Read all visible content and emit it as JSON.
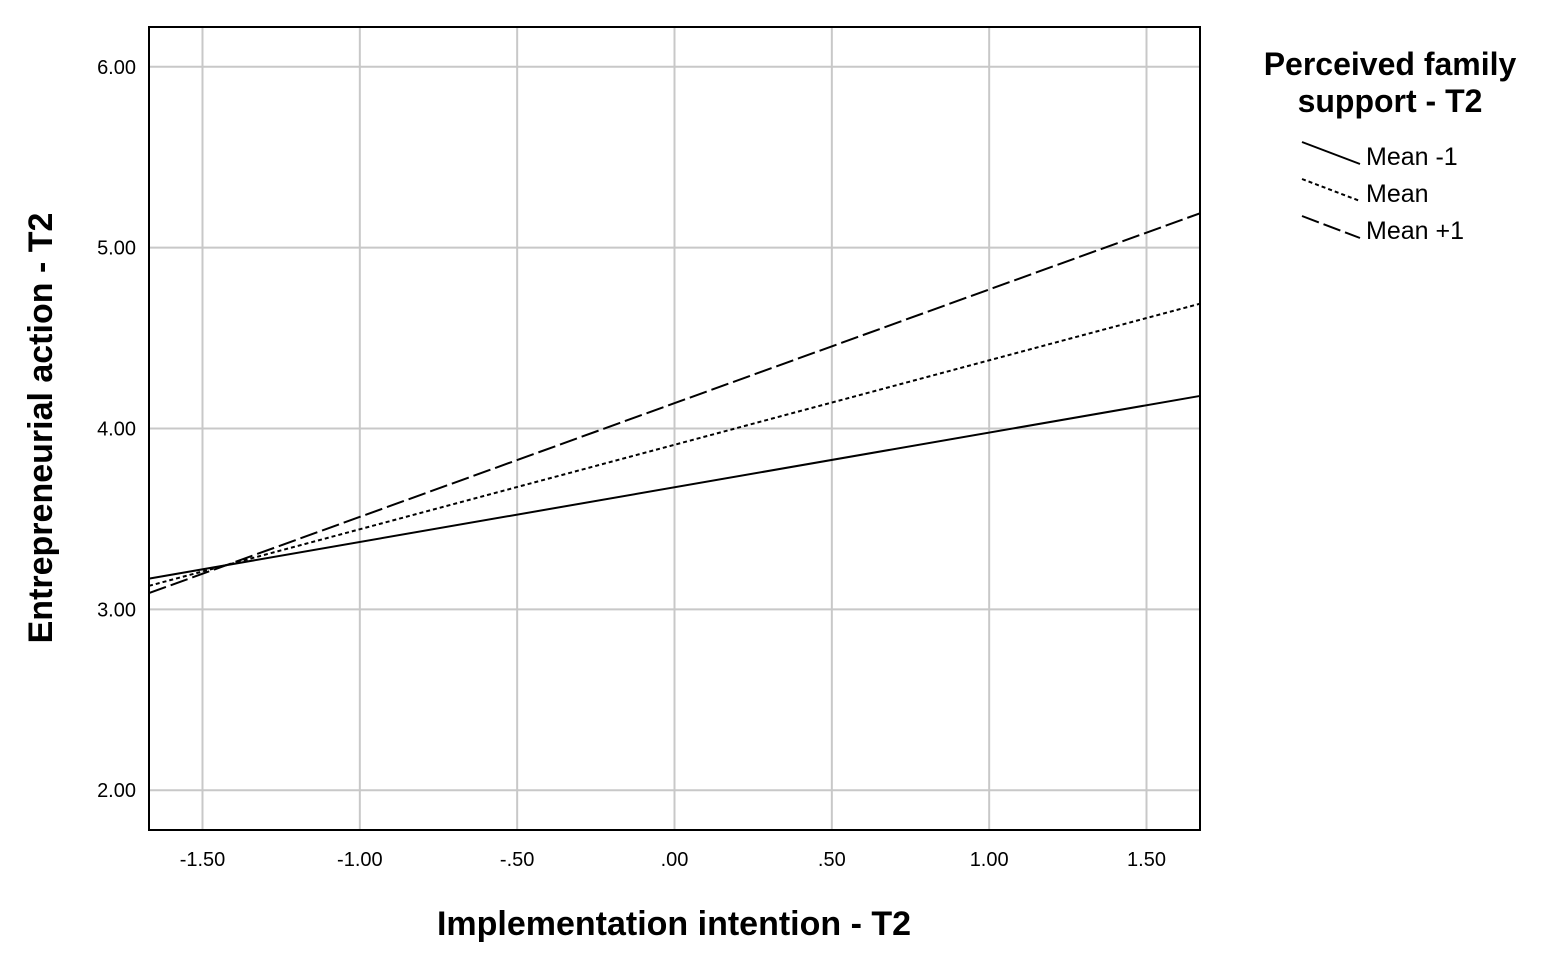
{
  "chart_data": {
    "type": "line",
    "title": "",
    "xlabel": "Implementation intention - T2",
    "ylabel": "Entrepreneurial action - T2",
    "xlim": [
      -1.67,
      1.67
    ],
    "ylim": [
      1.78,
      6.22
    ],
    "x_ticks": [
      -1.5,
      -1.0,
      -0.5,
      0.0,
      0.5,
      1.0,
      1.5
    ],
    "x_tick_labels": [
      "-1.50",
      "-1.00",
      "-.50",
      ".00",
      ".50",
      "1.00",
      "1.50"
    ],
    "y_ticks": [
      2.0,
      3.0,
      4.0,
      5.0,
      6.0
    ],
    "y_tick_labels": [
      "2.00",
      "3.00",
      "4.00",
      "5.00",
      "6.00"
    ],
    "grid": true,
    "legend": {
      "title": [
        "Perceived family",
        "support - T2"
      ],
      "placement": "top-right outside"
    },
    "series": [
      {
        "name": "Mean -1",
        "style": "solid",
        "x": [
          -1.67,
          1.67
        ],
        "y": [
          3.17,
          4.18
        ]
      },
      {
        "name": "Mean",
        "style": "dotted",
        "x": [
          -1.67,
          1.67
        ],
        "y": [
          3.13,
          4.69
        ]
      },
      {
        "name": "Mean +1",
        "style": "dashed",
        "x": [
          -1.67,
          1.67
        ],
        "y": [
          3.09,
          5.19
        ]
      }
    ],
    "colors": {
      "line": "#000000",
      "grid": "#c8c8c8",
      "frame": "#000000"
    }
  }
}
